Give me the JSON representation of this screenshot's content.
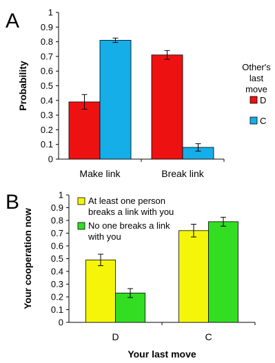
{
  "chart_data": [
    {
      "panel": "A",
      "type": "bar",
      "categories": [
        "Make link",
        "Break link"
      ],
      "series": [
        {
          "name": "D",
          "values": [
            0.39,
            0.71
          ],
          "errors": [
            0.05,
            0.03
          ],
          "color": "#ee1111"
        },
        {
          "name": "C",
          "values": [
            0.81,
            0.08
          ],
          "errors": [
            0.015,
            0.025
          ],
          "color": "#15aee8"
        }
      ],
      "xlabel": "",
      "ylabel": "Probability",
      "ylim": [
        0,
        1
      ],
      "yticks": [
        "0",
        "0.1",
        "0.2",
        "0.3",
        "0.4",
        "0.5",
        "0.6",
        "0.7",
        "0.8",
        "0.9",
        "1"
      ],
      "legend_title": [
        "Other's",
        "last",
        "move"
      ],
      "legend_position": "right",
      "grid": false
    },
    {
      "panel": "B",
      "type": "bar",
      "categories": [
        "D",
        "C"
      ],
      "series": [
        {
          "name": "At least one person breaks a link with you",
          "name_lines": [
            "At least one person",
            "breaks a link with you"
          ],
          "values": [
            0.49,
            0.72
          ],
          "errors": [
            0.045,
            0.05
          ],
          "color": "#f5f50a"
        },
        {
          "name": "No one breaks a link with you",
          "name_lines": [
            "No one breaks a link",
            "with you"
          ],
          "values": [
            0.23,
            0.79
          ],
          "errors": [
            0.035,
            0.035
          ],
          "color": "#33dd22"
        }
      ],
      "xlabel": "Your last move",
      "ylabel": "Your cooperation now",
      "ylim": [
        0,
        1
      ],
      "yticks": [
        "0",
        "0.1",
        "0.2",
        "0.3",
        "0.4",
        "0.5",
        "0.6",
        "0.7",
        "0.8",
        "0.9",
        "1"
      ],
      "legend_position": "top-left",
      "grid": false
    }
  ]
}
